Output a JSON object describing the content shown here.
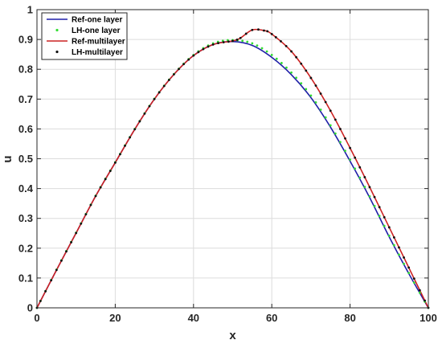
{
  "chart_data": {
    "type": "line",
    "title": "",
    "xlabel": "x",
    "ylabel": "u",
    "xlim": [
      0,
      100
    ],
    "ylim": [
      0,
      1
    ],
    "grid": true,
    "legend_position": "top-left",
    "x_ticks": [
      0,
      20,
      40,
      60,
      80,
      100
    ],
    "y_ticks": [
      0,
      0.1,
      0.2,
      0.3,
      0.4,
      0.5,
      0.6,
      0.7,
      0.8,
      0.9,
      1
    ],
    "x_tick_labels": [
      "0",
      "20",
      "40",
      "60",
      "80",
      "100"
    ],
    "y_tick_labels": [
      "0",
      "0.1",
      "0.2",
      "0.3",
      "0.4",
      "0.5",
      "0.6",
      "0.7",
      "0.8",
      "0.9",
      "1"
    ],
    "series": [
      {
        "name": "Ref-one layer",
        "style": "line",
        "color": "#1f1fa8",
        "x": [
          0,
          5,
          10,
          15,
          20,
          25,
          30,
          35,
          40,
          45,
          50,
          55,
          60,
          65,
          70,
          75,
          80,
          85,
          90,
          95,
          100
        ],
        "y": [
          0,
          0.127,
          0.251,
          0.375,
          0.487,
          0.599,
          0.7,
          0.783,
          0.846,
          0.883,
          0.893,
          0.88,
          0.84,
          0.782,
          0.705,
          0.606,
          0.492,
          0.37,
          0.238,
          0.115,
          0
        ]
      },
      {
        "name": "LH-one layer",
        "style": "markers",
        "color": "#33dd33",
        "x": [
          0,
          5,
          10,
          15,
          20,
          25,
          30,
          35,
          40,
          45,
          50,
          55,
          60,
          65,
          70,
          75,
          80,
          85,
          90,
          95,
          100
        ],
        "y": [
          0,
          0.128,
          0.252,
          0.376,
          0.488,
          0.6,
          0.701,
          0.784,
          0.848,
          0.887,
          0.898,
          0.887,
          0.848,
          0.789,
          0.712,
          0.612,
          0.497,
          0.374,
          0.242,
          0.117,
          0
        ]
      },
      {
        "name": "Ref-multilayer",
        "style": "line",
        "color": "#cc2222",
        "x": [
          0,
          5,
          10,
          15,
          20,
          25,
          30,
          35,
          40,
          45,
          50,
          52,
          55,
          58,
          60,
          65,
          70,
          75,
          80,
          85,
          90,
          95,
          100
        ],
        "y": [
          0,
          0.127,
          0.251,
          0.375,
          0.487,
          0.599,
          0.7,
          0.783,
          0.846,
          0.883,
          0.895,
          0.905,
          0.932,
          0.93,
          0.918,
          0.86,
          0.771,
          0.661,
          0.536,
          0.405,
          0.27,
          0.135,
          0
        ]
      },
      {
        "name": "LH-multilayer",
        "style": "markers",
        "color": "#111111",
        "x": [
          0,
          5,
          10,
          15,
          20,
          25,
          30,
          35,
          40,
          45,
          50,
          52,
          55,
          58,
          60,
          65,
          70,
          75,
          80,
          85,
          90,
          95,
          100
        ],
        "y": [
          0,
          0.127,
          0.251,
          0.375,
          0.487,
          0.599,
          0.7,
          0.783,
          0.846,
          0.883,
          0.895,
          0.905,
          0.932,
          0.93,
          0.918,
          0.86,
          0.771,
          0.661,
          0.536,
          0.405,
          0.27,
          0.135,
          0
        ]
      }
    ]
  }
}
